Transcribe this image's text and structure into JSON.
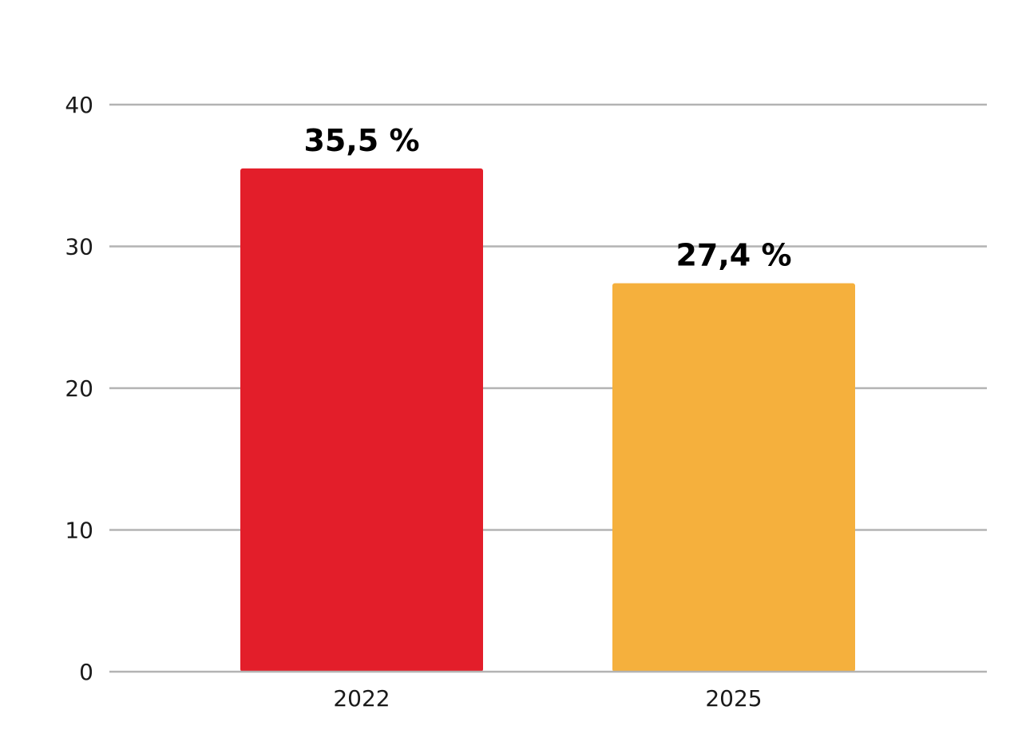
{
  "chart_data": {
    "type": "bar",
    "categories": [
      "2022",
      "2025"
    ],
    "values": [
      35.5,
      27.4
    ],
    "data_labels": [
      "35,5 %",
      "27,4 %"
    ],
    "colors": [
      "#e31e2a",
      "#f5b03d"
    ],
    "yticks": [
      0,
      10,
      20,
      30,
      40
    ],
    "ylim": [
      0,
      40
    ],
    "grid": true,
    "legend": "none",
    "title": "",
    "xlabel": "",
    "ylabel": ""
  }
}
